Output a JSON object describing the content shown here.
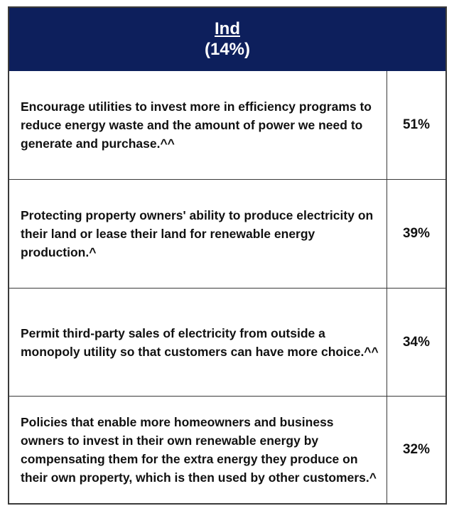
{
  "chart_data": {
    "type": "table",
    "column_header": {
      "label": "Ind",
      "share": "(14%)"
    },
    "rows": [
      {
        "statement": "Encourage utilities to invest more in efficiency programs to reduce energy waste and the amount of power we need to generate and purchase.^^",
        "value": "51%"
      },
      {
        "statement": "Protecting property owners' ability to produce electricity on their land or lease their land for renewable energy production.^",
        "value": "39%"
      },
      {
        "statement": "Permit third-party sales of electricity from outside a monopoly utility so that customers can have more choice.^^",
        "value": "34%"
      },
      {
        "statement": "Policies that enable more homeowners and business owners to invest in their own renewable energy by compensating them for the extra energy they produce on their own property, which is then used by other customers.^",
        "value": "32%"
      }
    ],
    "values": [
      51,
      39,
      34,
      32
    ]
  },
  "colors": {
    "header_background": "#0d1f5c",
    "header_text": "#ffffff",
    "border": "#3a3a3a"
  }
}
